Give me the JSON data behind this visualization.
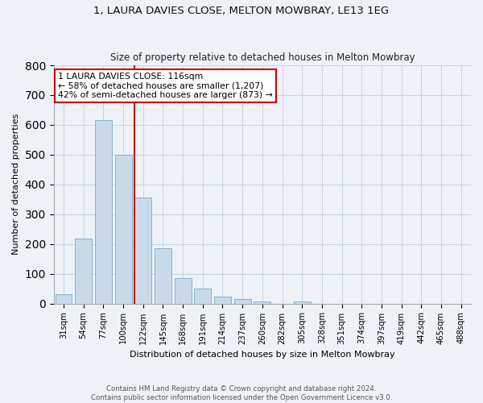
{
  "title": "1, LAURA DAVIES CLOSE, MELTON MOWBRAY, LE13 1EG",
  "subtitle": "Size of property relative to detached houses in Melton Mowbray",
  "xlabel": "Distribution of detached houses by size in Melton Mowbray",
  "ylabel": "Number of detached properties",
  "categories": [
    "31sqm",
    "54sqm",
    "77sqm",
    "100sqm",
    "122sqm",
    "145sqm",
    "168sqm",
    "191sqm",
    "214sqm",
    "237sqm",
    "260sqm",
    "282sqm",
    "305sqm",
    "328sqm",
    "351sqm",
    "374sqm",
    "397sqm",
    "419sqm",
    "442sqm",
    "465sqm",
    "488sqm"
  ],
  "values": [
    30,
    218,
    615,
    500,
    355,
    185,
    85,
    50,
    22,
    15,
    8,
    0,
    7,
    0,
    0,
    0,
    0,
    0,
    0,
    0,
    0
  ],
  "bar_color": "#c8daea",
  "bar_edge_color": "#7aaac8",
  "annotation_text": "1 LAURA DAVIES CLOSE: 116sqm\n← 58% of detached houses are smaller (1,207)\n42% of semi-detached houses are larger (873) →",
  "annotation_box_color": "#ffffff",
  "annotation_box_edge": "#cc0000",
  "vline_color": "#cc0000",
  "background_color": "#eef2f7",
  "grid_color": "#c8d4e0",
  "footer": "Contains HM Land Registry data © Crown copyright and database right 2024.\nContains public sector information licensed under the Open Government Licence v3.0.",
  "ylim": [
    0,
    800
  ],
  "yticks": [
    0,
    100,
    200,
    300,
    400,
    500,
    600,
    700,
    800
  ],
  "vline_bin": 4
}
